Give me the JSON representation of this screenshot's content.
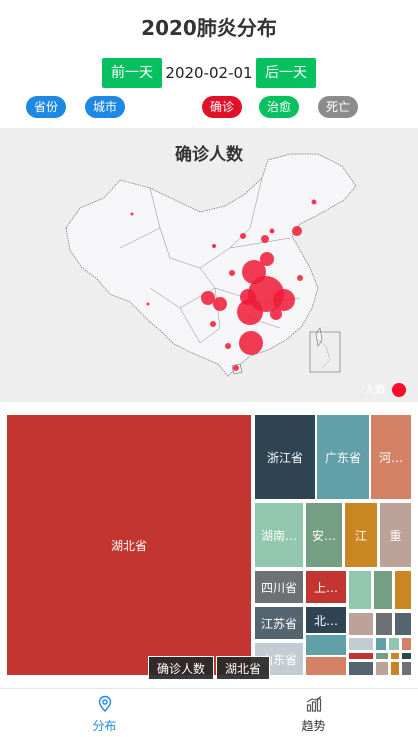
{
  "title": "2020肺炎分布",
  "date_nav": {
    "prev_label": "前一天",
    "date": "2020-02-01",
    "next_label": "后一天"
  },
  "filters": {
    "province": "省份",
    "city": "城市",
    "confirm": "确诊",
    "cure": "治愈",
    "death": "死亡"
  },
  "map": {
    "title": "确诊人数",
    "legend_label": "人数"
  },
  "treemap": {
    "tiles": [
      "湖北省",
      "浙江省",
      "广东省",
      "河…",
      "湖南…",
      "安…",
      "江",
      "重",
      "四川省",
      "上…",
      "江苏省",
      "北…",
      "山东省"
    ],
    "breadcrumb": [
      "确诊人数",
      "湖北省"
    ]
  },
  "tabs": [
    {
      "label": "分布"
    },
    {
      "label": "趋势"
    }
  ],
  "colors": {
    "green": "#07c160",
    "blue": "#1e88e5",
    "red": "#e0122a",
    "grey": "#8c8c8c"
  }
}
